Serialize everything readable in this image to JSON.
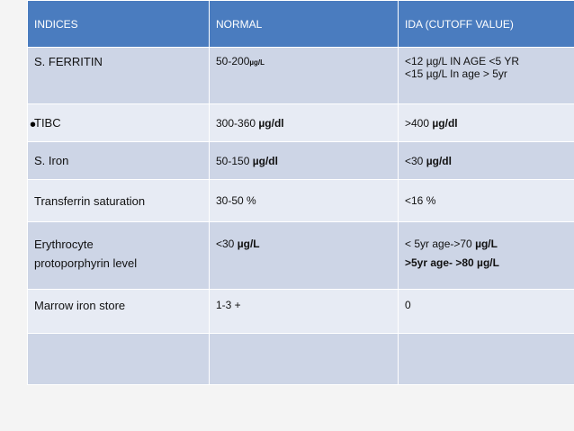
{
  "table": {
    "headers": [
      "INDICES",
      "NORMAL",
      "IDA (CUTOFF  VALUE)"
    ],
    "rows": [
      {
        "index": "S. FERRITIN",
        "normal_value": "50-200",
        "normal_unit": "µg/L",
        "ida_lines": [
          "<12 µg/L IN AGE <5 YR",
          "<15 µg/L In age > 5yr"
        ]
      },
      {
        "index": "TIBC",
        "normal_value": "300-360 ",
        "normal_unit": "µg/dl",
        "ida_value": ">400  ",
        "ida_unit": "µg/dl"
      },
      {
        "index": "S. Iron",
        "normal_value": "50-150  ",
        "normal_unit": "µg/dl",
        "ida_value": "<30  ",
        "ida_unit": "µg/dl"
      },
      {
        "index": "Transferrin saturation",
        "normal": "30-50 %",
        "ida": "<16 %"
      },
      {
        "index_lines": [
          "Erythrocyte",
          "protoporphyrin level"
        ],
        "normal_value": "<30 ",
        "normal_unit": "µg/L",
        "ida_line1_value": "< 5yr age->70 ",
        "ida_line1_unit": "µg/L",
        "ida_line2": ">5yr age- >80 µg/L"
      },
      {
        "index": "Marrow iron store",
        "normal": "1-3 +",
        "ida": "0"
      },
      {
        "index": "",
        "normal": "",
        "ida": ""
      }
    ]
  },
  "bullet": "•"
}
